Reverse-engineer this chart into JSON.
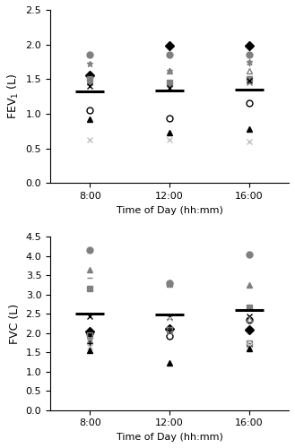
{
  "fev1": {
    "times": [
      1,
      2,
      3
    ],
    "xtick_labels": [
      "8:00",
      "12:00",
      "16:00"
    ],
    "ylabel": "FEV$_1$ (L)",
    "ylim": [
      0,
      2.5
    ],
    "yticks": [
      0,
      0.5,
      1.0,
      1.5,
      2.0,
      2.5
    ],
    "subjects": [
      {
        "marker": "o",
        "filled": true,
        "color": "gray",
        "data": [
          1.85,
          1.85,
          1.85
        ]
      },
      {
        "marker": "*",
        "filled": true,
        "color": "gray",
        "data": [
          1.72,
          1.62,
          1.75
        ]
      },
      {
        "marker": "D",
        "filled": true,
        "color": "black",
        "data": [
          1.55,
          1.98,
          1.98
        ]
      },
      {
        "marker": "s",
        "filled": true,
        "color": "gray",
        "data": [
          1.5,
          1.45,
          1.5
        ]
      },
      {
        "marker": "^",
        "filled": false,
        "color": "gray",
        "data": [
          1.48,
          1.62,
          1.62
        ]
      },
      {
        "marker": "x",
        "filled": false,
        "color": "gray",
        "data": [
          1.45,
          1.42,
          1.45
        ]
      },
      {
        "marker": "+",
        "filled": false,
        "color": "gray",
        "data": [
          1.42,
          1.4,
          1.72
        ]
      },
      {
        "marker": "x",
        "filled": false,
        "color": "black",
        "data": [
          1.4,
          1.38,
          1.48
        ]
      },
      {
        "marker": "o",
        "filled": false,
        "color": "black",
        "data": [
          1.05,
          0.93,
          1.15
        ]
      },
      {
        "marker": "^",
        "filled": true,
        "color": "black",
        "data": [
          0.92,
          0.73,
          0.78
        ]
      },
      {
        "marker": "x",
        "filled": false,
        "color": "lightgray",
        "data": [
          0.62,
          0.62,
          0.6
        ]
      }
    ],
    "means": [
      1.32,
      1.33,
      1.35
    ]
  },
  "fvc": {
    "times": [
      1,
      2,
      3
    ],
    "xtick_labels": [
      "8:00",
      "12:00",
      "16:00"
    ],
    "ylabel": "FVC (L)",
    "ylim": [
      0,
      4.5
    ],
    "yticks": [
      0,
      0.5,
      1.0,
      1.5,
      2.0,
      2.5,
      3.0,
      3.5,
      4.0,
      4.5
    ],
    "subjects": [
      {
        "marker": "o",
        "filled": true,
        "color": "gray",
        "data": [
          4.15,
          3.3,
          4.05
        ]
      },
      {
        "marker": "^",
        "filled": true,
        "color": "gray",
        "data": [
          3.65,
          3.33,
          3.25
        ]
      },
      {
        "marker": "_",
        "filled": false,
        "color": "gray",
        "data": [
          3.45,
          3.3,
          3.2
        ]
      },
      {
        "marker": "s",
        "filled": true,
        "color": "gray",
        "data": [
          3.15,
          3.28,
          2.68
        ]
      },
      {
        "marker": "x",
        "filled": false,
        "color": "black",
        "data": [
          2.45,
          2.42,
          2.45
        ]
      },
      {
        "marker": "D",
        "filled": true,
        "color": "black",
        "data": [
          2.05,
          2.12,
          2.1
        ]
      },
      {
        "marker": "o",
        "filled": false,
        "color": "black",
        "data": [
          2.0,
          1.92,
          2.35
        ]
      },
      {
        "marker": "s",
        "filled": false,
        "color": "gray",
        "data": [
          1.95,
          2.08,
          1.75
        ]
      },
      {
        "marker": "^",
        "filled": false,
        "color": "gray",
        "data": [
          1.82,
          2.1,
          2.38
        ]
      },
      {
        "marker": "x",
        "filled": false,
        "color": "gray",
        "data": [
          1.78,
          2.05,
          1.72
        ]
      },
      {
        "marker": "+",
        "filled": false,
        "color": "black",
        "data": [
          1.75,
          2.1,
          1.68
        ]
      },
      {
        "marker": "x",
        "filled": false,
        "color": "lightgray",
        "data": [
          1.65,
          2.4,
          1.7
        ]
      },
      {
        "marker": "^",
        "filled": true,
        "color": "black",
        "data": [
          1.55,
          1.23,
          1.6
        ]
      }
    ],
    "means": [
      2.5,
      2.49,
      2.6
    ]
  },
  "xlabel": "Time of Day (hh:mm)",
  "mean_bar_color": "black",
  "mean_bar_width": 0.18,
  "bg_color": "white",
  "color_map": {
    "gray": "#808080",
    "black": "#000000",
    "lightgray": "#C0C0C0"
  }
}
